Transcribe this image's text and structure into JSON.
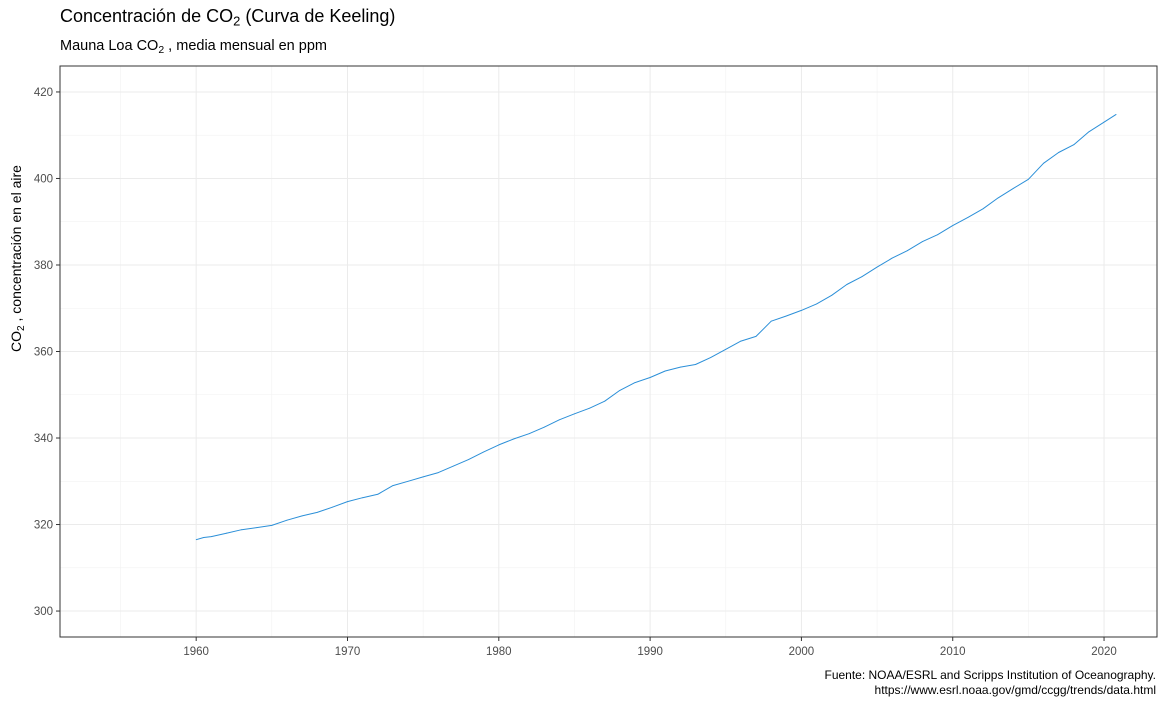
{
  "chart_data": {
    "type": "line",
    "title_parts": [
      "Concentración de CO",
      "2",
      " (Curva de Keeling)"
    ],
    "subtitle_parts": [
      "Mauna Loa CO",
      "2",
      " , media mensual en ppm"
    ],
    "ylabel_parts": [
      "CO",
      "2",
      " , concentración en el aire"
    ],
    "xlabel": "",
    "caption_lines": [
      "Fuente: NOAA/ESRL and Scripps Institution of Oceanography.",
      "https://www.esrl.noaa.gov/gmd/ccgg/trends/data.html"
    ],
    "xlim": [
      1951,
      2023.5
    ],
    "ylim": [
      294,
      426
    ],
    "x_ticks": [
      1960,
      1970,
      1980,
      1990,
      2000,
      2010,
      2020
    ],
    "y_ticks": [
      300,
      320,
      340,
      360,
      380,
      400,
      420
    ],
    "grid": true,
    "series": [
      {
        "color": "#2b8fd8",
        "x": [
          1960.0,
          1960.5,
          1961.0,
          1962.0,
          1963.0,
          1964.0,
          1965.0,
          1966.0,
          1967.0,
          1968.0,
          1969.0,
          1970.0,
          1971.0,
          1972.0,
          1973.0,
          1974.0,
          1975.0,
          1976.0,
          1977.0,
          1978.0,
          1979.0,
          1980.0,
          1981.0,
          1982.0,
          1983.0,
          1984.0,
          1985.0,
          1986.0,
          1987.0,
          1988.0,
          1989.0,
          1990.0,
          1991.0,
          1992.0,
          1993.0,
          1994.0,
          1995.0,
          1996.0,
          1997.0,
          1998.0,
          1999.0,
          2000.0,
          2001.0,
          2002.0,
          2003.0,
          2004.0,
          2005.0,
          2006.0,
          2007.0,
          2008.0,
          2009.0,
          2010.0,
          2011.0,
          2012.0,
          2013.0,
          2014.0,
          2015.0,
          2016.0,
          2017.0,
          2018.0,
          2019.0,
          2020.0,
          2020.8
        ],
        "y": [
          316.5,
          317.0,
          317.2,
          318.0,
          318.8,
          319.3,
          319.8,
          321.0,
          322.0,
          322.8,
          324.0,
          325.3,
          326.2,
          327.0,
          329.0,
          330.0,
          331.0,
          332.0,
          333.5,
          335.0,
          336.8,
          338.4,
          339.8,
          341.0,
          342.5,
          344.2,
          345.6,
          346.9,
          348.5,
          351.0,
          352.8,
          354.0,
          355.5,
          356.4,
          357.0,
          358.6,
          360.5,
          362.4,
          363.5,
          367.0,
          368.2,
          369.5,
          371.0,
          373.0,
          375.5,
          377.3,
          379.5,
          381.6,
          383.3,
          385.4,
          387.0,
          389.1,
          391.0,
          393.0,
          395.5,
          397.7,
          399.8,
          403.5,
          406.0,
          407.8,
          410.8,
          413.0,
          414.8
        ]
      }
    ]
  }
}
